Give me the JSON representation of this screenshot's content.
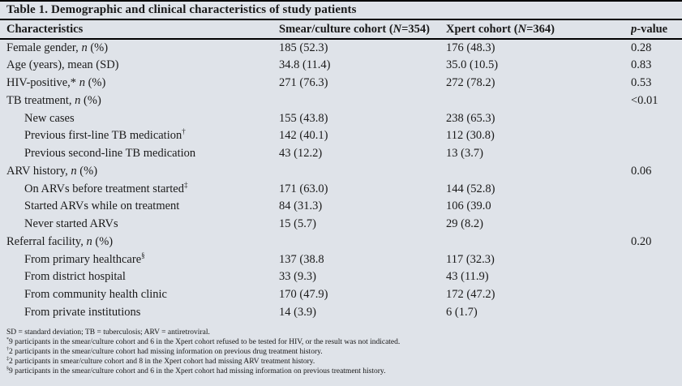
{
  "page": {
    "background_color": "#dfe3e9",
    "text_color": "#1a1a1a",
    "rule_color": "#000000"
  },
  "table": {
    "title": "Table 1. Demographic and clinical characteristics of study patients",
    "columns": [
      {
        "name": "characteristics",
        "segments": [
          {
            "t": "Characteristics"
          }
        ]
      },
      {
        "name": "smear-culture-cohort",
        "segments": [
          {
            "t": "Smear/culture cohort ("
          },
          {
            "t": "N",
            "i": true
          },
          {
            "t": "=354)"
          }
        ]
      },
      {
        "name": "xpert-cohort",
        "segments": [
          {
            "t": "Xpert cohort ("
          },
          {
            "t": "N",
            "i": true
          },
          {
            "t": "=364)"
          }
        ]
      },
      {
        "name": "p-value",
        "segments": [
          {
            "t": "p",
            "i": true
          },
          {
            "t": "-value"
          }
        ]
      }
    ],
    "rows": [
      {
        "indent": false,
        "label": [
          {
            "t": "Female gender, "
          },
          {
            "t": "n",
            "i": true
          },
          {
            "t": " (%)"
          }
        ],
        "smear": "185 (52.3)",
        "xpert": "176 (48.3)",
        "p": "0.28"
      },
      {
        "indent": false,
        "label": [
          {
            "t": "Age (years), mean (SD)"
          }
        ],
        "smear": "34.8 (11.4)",
        "xpert": "35.0 (10.5)",
        "p": "0.83"
      },
      {
        "indent": false,
        "label": [
          {
            "t": "HIV-positive,* "
          },
          {
            "t": "n",
            "i": true
          },
          {
            "t": " (%)"
          }
        ],
        "smear": "271 (76.3)",
        "xpert": "272 (78.2)",
        "p": "0.53"
      },
      {
        "indent": false,
        "label": [
          {
            "t": "TB treatment, "
          },
          {
            "t": "n",
            "i": true
          },
          {
            "t": " (%)"
          }
        ],
        "smear": "",
        "xpert": "",
        "p": "<0.01"
      },
      {
        "indent": true,
        "label": [
          {
            "t": "New cases"
          }
        ],
        "smear": "155 (43.8)",
        "xpert": "238 (65.3)",
        "p": ""
      },
      {
        "indent": true,
        "label": [
          {
            "t": "Previous first-line TB medication"
          },
          {
            "t": "†",
            "sup": true
          }
        ],
        "smear": "142 (40.1)",
        "xpert": "112 (30.8)",
        "p": ""
      },
      {
        "indent": true,
        "label": [
          {
            "t": "Previous second-line TB medication"
          }
        ],
        "smear": "43 (12.2)",
        "xpert": "13 (3.7)",
        "p": ""
      },
      {
        "indent": false,
        "label": [
          {
            "t": "ARV history, "
          },
          {
            "t": "n",
            "i": true
          },
          {
            "t": " (%)"
          }
        ],
        "smear": "",
        "xpert": "",
        "p": "0.06"
      },
      {
        "indent": true,
        "label": [
          {
            "t": "On ARVs before treatment started"
          },
          {
            "t": "‡",
            "sup": true
          }
        ],
        "smear": "171 (63.0)",
        "xpert": "144 (52.8)",
        "p": ""
      },
      {
        "indent": true,
        "label": [
          {
            "t": "Started ARVs while on treatment"
          }
        ],
        "smear": "84 (31.3)",
        "xpert": "106 (39.0",
        "p": ""
      },
      {
        "indent": true,
        "label": [
          {
            "t": "Never started ARVs"
          }
        ],
        "smear": "15 (5.7)",
        "xpert": "29 (8.2)",
        "p": ""
      },
      {
        "indent": false,
        "label": [
          {
            "t": "Referral facility, "
          },
          {
            "t": "n",
            "i": true
          },
          {
            "t": " (%)"
          }
        ],
        "smear": "",
        "xpert": "",
        "p": "0.20"
      },
      {
        "indent": true,
        "label": [
          {
            "t": "From primary healthcare"
          },
          {
            "t": "§",
            "sup": true
          }
        ],
        "smear": "137 (38.8",
        "xpert": "117 (32.3)",
        "p": ""
      },
      {
        "indent": true,
        "label": [
          {
            "t": "From district hospital"
          }
        ],
        "smear": "33 (9.3)",
        "xpert": "43 (11.9)",
        "p": ""
      },
      {
        "indent": true,
        "label": [
          {
            "t": "From community health clinic"
          }
        ],
        "smear": "170 (47.9)",
        "xpert": "172 (47.2)",
        "p": ""
      },
      {
        "indent": true,
        "label": [
          {
            "t": "From private institutions"
          }
        ],
        "smear": "14 (3.9)",
        "xpert": "6 (1.7)",
        "p": ""
      }
    ],
    "footnotes": [
      {
        "marker": "",
        "text": "SD = standard deviation; TB = tuberculosis; ARV = antiretroviral."
      },
      {
        "marker": "*",
        "text": "9 participants in the smear/culture cohort and 6 in the Xpert cohort refused to be tested for HIV, or the result was not indicated."
      },
      {
        "marker": "†",
        "text": "2 participants in the smear/culture cohort had missing information on previous drug treatment history."
      },
      {
        "marker": "‡",
        "text": "2 participants in smear/culture cohort and 8 in the Xpert cohort had missing ARV treatment history."
      },
      {
        "marker": "§",
        "text": "9 participants in the smear/culture cohort and 6 in the Xpert cohort had missing information on previous treatment history."
      }
    ]
  }
}
